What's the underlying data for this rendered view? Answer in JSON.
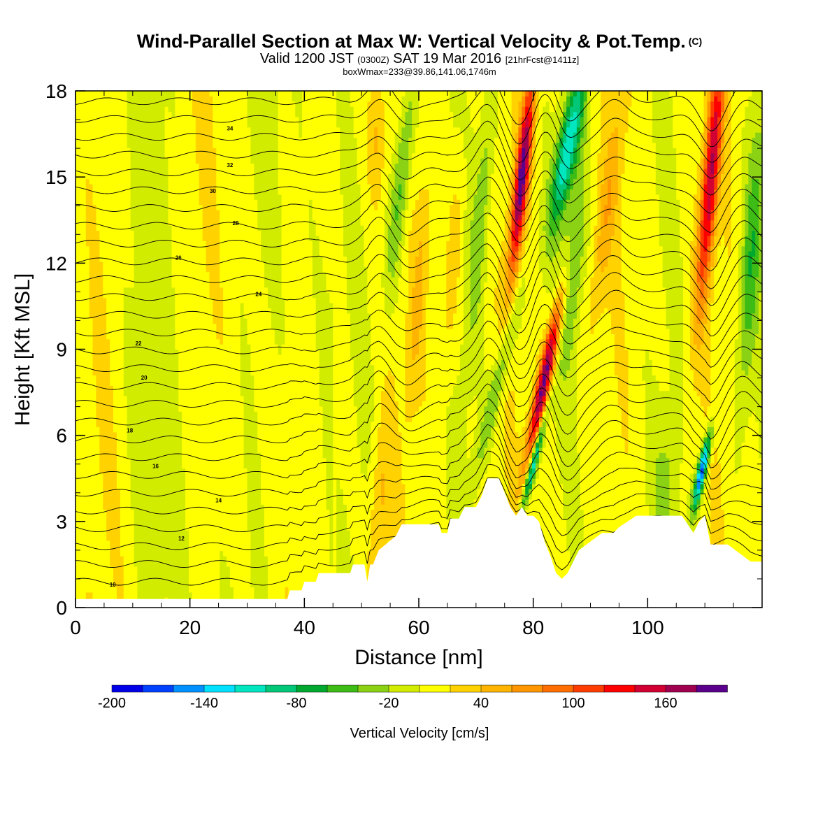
{
  "title": {
    "line1": "Wind-Parallel Section at Max W: Vertical Velocity & Pot.Temp.",
    "line1_mark": "(C)",
    "line2_a": "Valid 1200 JST",
    "line2_b": "(0300Z)",
    "line2_c": "SAT 19 Mar 2016",
    "line2_d": "[21hrFcst@1411z]",
    "line3": "boxWmax=233@39.86,141.06,1746m"
  },
  "chart_data": {
    "type": "heatmap",
    "xlabel": "Distance [nm]",
    "ylabel": "Height [Kft MSL]",
    "xlim": [
      0,
      120
    ],
    "ylim": [
      0,
      18
    ],
    "x_ticks": [
      "0",
      "20",
      "40",
      "60",
      "80",
      "100"
    ],
    "y_ticks": [
      "0",
      "3",
      "6",
      "9",
      "12",
      "15",
      "18"
    ],
    "colorbar": {
      "label": "Vertical Velocity [cm/s]",
      "levels": [
        -200,
        -180,
        -160,
        -140,
        -120,
        -100,
        -80,
        -60,
        -40,
        -20,
        0,
        20,
        40,
        60,
        80,
        100,
        120,
        140,
        160,
        180,
        200
      ],
      "tick_labels": [
        "-200",
        "-140",
        "-80",
        "-20",
        "40",
        "100",
        "160"
      ],
      "colors": [
        "#0000e8",
        "#0040ff",
        "#0090ff",
        "#00e0ff",
        "#00e6c0",
        "#00c878",
        "#00a830",
        "#3cbc14",
        "#8cd214",
        "#d2ec00",
        "#ffff00",
        "#ffd200",
        "#ffb400",
        "#ff9600",
        "#ff6e00",
        "#ff3c00",
        "#ff0000",
        "#d20032",
        "#a00050",
        "#5a008c"
      ]
    },
    "terrain_kft": [
      [
        0,
        0.3
      ],
      [
        37,
        0.3
      ],
      [
        37.5,
        0.6
      ],
      [
        39.5,
        0.6
      ],
      [
        40,
        0.9
      ],
      [
        42,
        0.9
      ],
      [
        42.5,
        1.2
      ],
      [
        44,
        1.2
      ],
      [
        48,
        1.2
      ],
      [
        48.5,
        1.5
      ],
      [
        50.5,
        1.5
      ],
      [
        51,
        0.9
      ],
      [
        51.5,
        1.5
      ],
      [
        52,
        1.5
      ],
      [
        53,
        2.0
      ],
      [
        56,
        2.5
      ],
      [
        57,
        2.9
      ],
      [
        60,
        2.9
      ],
      [
        63.5,
        2.9
      ],
      [
        64,
        2.6
      ],
      [
        65,
        2.6
      ],
      [
        65.5,
        3.1
      ],
      [
        67,
        3.1
      ],
      [
        68,
        3.5
      ],
      [
        70,
        3.5
      ],
      [
        71,
        3.9
      ],
      [
        72,
        4.5
      ],
      [
        74,
        4.5
      ],
      [
        75,
        4.0
      ],
      [
        76,
        3.5
      ],
      [
        77,
        3.2
      ],
      [
        78,
        3.5
      ],
      [
        79,
        3.2
      ],
      [
        80,
        3.2
      ],
      [
        81,
        3.0
      ],
      [
        82,
        2.3
      ],
      [
        83,
        1.8
      ],
      [
        84,
        1.2
      ],
      [
        85,
        1.0
      ],
      [
        86,
        1.2
      ],
      [
        87,
        1.6
      ],
      [
        88,
        2.0
      ],
      [
        90,
        2.3
      ],
      [
        92,
        2.6
      ],
      [
        94,
        2.6
      ],
      [
        95,
        2.8
      ],
      [
        98,
        3.2
      ],
      [
        100,
        3.2
      ],
      [
        102,
        3.2
      ],
      [
        104,
        3.2
      ],
      [
        106,
        3.2
      ],
      [
        108,
        2.6
      ],
      [
        109,
        3.0
      ],
      [
        110,
        3.2
      ],
      [
        111,
        2.2
      ],
      [
        112,
        2.2
      ],
      [
        114,
        2.2
      ],
      [
        116,
        1.9
      ],
      [
        118,
        1.6
      ],
      [
        120,
        1.6
      ],
      [
        120,
        0
      ]
    ],
    "vv_features": [
      {
        "x": 53,
        "z": 3,
        "w": 1.7,
        "h": 4,
        "amp": 40,
        "tilt": 0.3
      },
      {
        "x": 52.5,
        "z": 16.5,
        "w": 1.6,
        "h": 2.5,
        "amp": 40,
        "tilt": 0
      },
      {
        "x": 57,
        "z": 15,
        "w": 1.6,
        "h": 4,
        "amp": -60,
        "tilt": 0.5
      },
      {
        "x": 60,
        "z": 11,
        "w": 1.3,
        "h": 4,
        "amp": 30,
        "tilt": 0.4
      },
      {
        "x": 66,
        "z": 12,
        "w": 1.4,
        "h": 4,
        "amp": 30,
        "tilt": 0.3
      },
      {
        "x": 71,
        "z": 14,
        "w": 1.5,
        "h": 5,
        "amp": -40,
        "tilt": 0.4
      },
      {
        "x": 74,
        "z": 8,
        "w": 1.4,
        "h": 3.5,
        "amp": -50,
        "tilt": 1.2
      },
      {
        "x": 78,
        "z": 15,
        "w": 1.2,
        "h": 3.5,
        "amp": 180,
        "tilt": 0.5
      },
      {
        "x": 82,
        "z": 8,
        "w": 1.2,
        "h": 3,
        "amp": 180,
        "tilt": 1.0
      },
      {
        "x": 80,
        "z": 5,
        "w": 0.7,
        "h": 1.8,
        "amp": -140,
        "tilt": 1.2
      },
      {
        "x": 86,
        "z": 16,
        "w": 1.8,
        "h": 2.8,
        "amp": -120,
        "tilt": 0.9
      },
      {
        "x": 87,
        "z": 12,
        "w": 1.8,
        "h": 3.5,
        "amp": -50,
        "tilt": 0.4
      },
      {
        "x": 93,
        "z": 14,
        "w": 1.7,
        "h": 4,
        "amp": 40,
        "tilt": 0.6
      },
      {
        "x": 111,
        "z": 15,
        "w": 1.4,
        "h": 4.5,
        "amp": 150,
        "tilt": 0.4
      },
      {
        "x": 109.5,
        "z": 4.8,
        "w": 0.8,
        "h": 1.3,
        "amp": -180,
        "tilt": 1.0
      },
      {
        "x": 118,
        "z": 12,
        "w": 1.7,
        "h": 5,
        "amp": -60,
        "tilt": 0.3
      },
      {
        "x": 103,
        "z": 4,
        "w": 2,
        "h": 2.5,
        "amp": -30,
        "tilt": 0
      }
    ],
    "theta_contours": [
      {
        "base": 0.9,
        "label": "10",
        "label_x": 6.5
      },
      {
        "base": 2.5,
        "label": "12",
        "label_x": 18.5
      },
      {
        "base": 3.8,
        "label": "14",
        "label_x": 25
      },
      {
        "base": 5.0,
        "label": "16",
        "label_x": 14
      },
      {
        "base": 6.3,
        "label": "18",
        "label_x": 9.5
      },
      {
        "base": 7.9,
        "label": "20",
        "label_x": 12
      },
      {
        "base": 9.1,
        "label": "22",
        "label_x": 11
      },
      {
        "base": 10.8,
        "label": "24",
        "label_x": 32
      },
      {
        "base": 12.1,
        "label": "26",
        "label_x": 18
      },
      {
        "base": 13.3,
        "label": "28",
        "label_x": 28
      },
      {
        "base": 14.4,
        "label": "30",
        "label_x": 24
      },
      {
        "base": 15.5,
        "label": "32",
        "label_x": 27
      },
      {
        "base": 16.8,
        "label": "34",
        "label_x": 27
      }
    ]
  }
}
